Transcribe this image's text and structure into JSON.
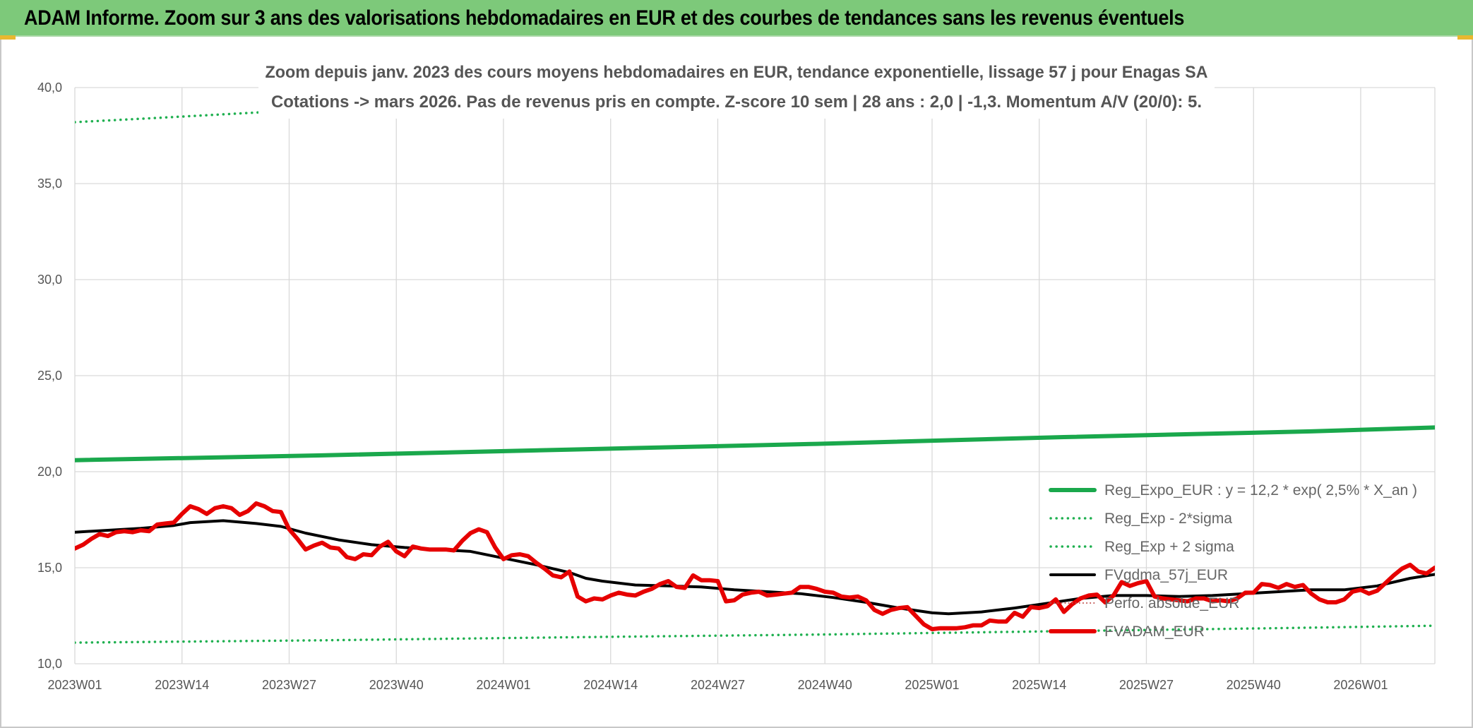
{
  "banner": {
    "title": "ADAM Informe. Zoom sur 3 ans des valorisations hebdomadaires en EUR et des courbes de tendances sans les revenus éventuels"
  },
  "colors": {
    "banner_green": "#7dc97a",
    "trend_green": "#1aa84c",
    "sigma_green": "#1fb050",
    "price_red": "#e60000",
    "moving_average_black": "#000000",
    "perf_dotted": "#c0504d",
    "grid": "#d9d9d9",
    "axis_text": "#555555"
  },
  "chart_data": {
    "type": "line",
    "subtitle_lines": [
      "Zoom depuis janv. 2023 des cours moyens hebdomadaires en EUR, tendance exponentielle, lissage 57 j pour Enagas SA",
      "Cotations -> mars 2026. Pas de revenus pris en compte. Z-score 10 sem | 28 ans : 2,0 | -1,3. Momentum A/V (20/0): 5."
    ],
    "ylim": [
      10,
      40
    ],
    "y_ticks": [
      {
        "value": 10,
        "label": "10,0"
      },
      {
        "value": 15,
        "label": "15,0"
      },
      {
        "value": 20,
        "label": "20,0"
      },
      {
        "value": 25,
        "label": "25,0"
      },
      {
        "value": 30,
        "label": "30,0"
      },
      {
        "value": 35,
        "label": "35,0"
      },
      {
        "value": 40,
        "label": "40,0"
      }
    ],
    "x_range_weeks": [
      0,
      165
    ],
    "x_ticks": [
      {
        "week": 0,
        "label": "2023W01"
      },
      {
        "week": 13,
        "label": "2023W14"
      },
      {
        "week": 26,
        "label": "2023W27"
      },
      {
        "week": 39,
        "label": "2023W40"
      },
      {
        "week": 52,
        "label": "2024W01"
      },
      {
        "week": 65,
        "label": "2024W14"
      },
      {
        "week": 78,
        "label": "2024W27"
      },
      {
        "week": 91,
        "label": "2024W40"
      },
      {
        "week": 104,
        "label": "2025W01"
      },
      {
        "week": 117,
        "label": "2025W14"
      },
      {
        "week": 130,
        "label": "2025W27"
      },
      {
        "week": 143,
        "label": "2025W40"
      },
      {
        "week": 156,
        "label": "2026W01"
      }
    ],
    "grid": true,
    "legend_position": "bottom-right",
    "series": [
      {
        "name": "Reg_Expo_EUR : y = 12,2 * exp( 2,5% *  X_an )",
        "style": "thick-solid",
        "color": "#1aa84c",
        "points": [
          [
            0,
            20.6
          ],
          [
            30,
            20.85
          ],
          [
            60,
            21.15
          ],
          [
            90,
            21.45
          ],
          [
            120,
            21.8
          ],
          [
            150,
            22.1
          ],
          [
            165,
            22.3
          ]
        ]
      },
      {
        "name": "Reg_Exp - 2*sigma",
        "style": "dotted",
        "color": "#1fb050",
        "points": [
          [
            0,
            11.1
          ],
          [
            30,
            11.22
          ],
          [
            60,
            11.38
          ],
          [
            90,
            11.52
          ],
          [
            120,
            11.7
          ],
          [
            150,
            11.88
          ],
          [
            165,
            11.98
          ]
        ]
      },
      {
        "name": "Reg_Exp + 2 sigma",
        "style": "dotted",
        "color": "#1fb050",
        "points": [
          [
            0,
            38.2
          ],
          [
            10,
            38.42
          ],
          [
            22,
            38.7
          ],
          [
            30,
            38.85
          ],
          [
            60,
            39.3
          ],
          [
            90,
            39.7
          ],
          [
            120,
            40.2
          ],
          [
            165,
            40.9
          ]
        ]
      },
      {
        "name": "FVgdma_57j_EUR",
        "style": "solid",
        "color": "#000000",
        "points": [
          [
            0,
            16.85
          ],
          [
            4,
            16.95
          ],
          [
            8,
            17.05
          ],
          [
            12,
            17.2
          ],
          [
            14,
            17.35
          ],
          [
            18,
            17.45
          ],
          [
            22,
            17.3
          ],
          [
            25,
            17.15
          ],
          [
            28,
            16.8
          ],
          [
            32,
            16.45
          ],
          [
            36,
            16.2
          ],
          [
            40,
            16.05
          ],
          [
            44,
            15.95
          ],
          [
            48,
            15.85
          ],
          [
            52,
            15.5
          ],
          [
            56,
            15.15
          ],
          [
            60,
            14.75
          ],
          [
            62,
            14.45
          ],
          [
            64,
            14.3
          ],
          [
            68,
            14.1
          ],
          [
            72,
            14.05
          ],
          [
            76,
            14.0
          ],
          [
            80,
            13.85
          ],
          [
            84,
            13.75
          ],
          [
            88,
            13.65
          ],
          [
            92,
            13.45
          ],
          [
            96,
            13.2
          ],
          [
            100,
            12.9
          ],
          [
            104,
            12.65
          ],
          [
            106,
            12.6
          ],
          [
            110,
            12.7
          ],
          [
            114,
            12.9
          ],
          [
            118,
            13.15
          ],
          [
            122,
            13.4
          ],
          [
            126,
            13.55
          ],
          [
            130,
            13.55
          ],
          [
            134,
            13.5
          ],
          [
            138,
            13.55
          ],
          [
            142,
            13.65
          ],
          [
            146,
            13.75
          ],
          [
            150,
            13.85
          ],
          [
            154,
            13.85
          ],
          [
            158,
            14.05
          ],
          [
            162,
            14.45
          ],
          [
            165,
            14.65
          ]
        ]
      },
      {
        "name": "Perfo. absolue_EUR",
        "style": "dotted-thin",
        "color": "#c0504d",
        "points": []
      },
      {
        "name": "FVADAM_EUR",
        "style": "thick-solid",
        "color": "#e60000",
        "points": [
          [
            0,
            16.0
          ],
          [
            1,
            16.2
          ],
          [
            2,
            16.5
          ],
          [
            3,
            16.75
          ],
          [
            4,
            16.65
          ],
          [
            5,
            16.85
          ],
          [
            6,
            16.9
          ],
          [
            7,
            16.85
          ],
          [
            8,
            16.95
          ],
          [
            9,
            16.9
          ],
          [
            10,
            17.25
          ],
          [
            11,
            17.3
          ],
          [
            12,
            17.35
          ],
          [
            13,
            17.8
          ],
          [
            14,
            18.2
          ],
          [
            15,
            18.05
          ],
          [
            16,
            17.8
          ],
          [
            17,
            18.1
          ],
          [
            18,
            18.2
          ],
          [
            19,
            18.1
          ],
          [
            20,
            17.75
          ],
          [
            21,
            17.95
          ],
          [
            22,
            18.35
          ],
          [
            23,
            18.2
          ],
          [
            24,
            17.95
          ],
          [
            25,
            17.9
          ],
          [
            26,
            17.0
          ],
          [
            27,
            16.5
          ],
          [
            28,
            15.95
          ],
          [
            29,
            16.15
          ],
          [
            30,
            16.3
          ],
          [
            31,
            16.05
          ],
          [
            32,
            16.0
          ],
          [
            33,
            15.55
          ],
          [
            34,
            15.45
          ],
          [
            35,
            15.7
          ],
          [
            36,
            15.65
          ],
          [
            37,
            16.1
          ],
          [
            38,
            16.35
          ],
          [
            39,
            15.85
          ],
          [
            40,
            15.6
          ],
          [
            41,
            16.1
          ],
          [
            42,
            16.0
          ],
          [
            43,
            15.95
          ],
          [
            44,
            15.95
          ],
          [
            45,
            15.95
          ],
          [
            46,
            15.9
          ],
          [
            47,
            16.4
          ],
          [
            48,
            16.8
          ],
          [
            49,
            17.0
          ],
          [
            50,
            16.85
          ],
          [
            51,
            16.05
          ],
          [
            52,
            15.45
          ],
          [
            53,
            15.65
          ],
          [
            54,
            15.7
          ],
          [
            55,
            15.6
          ],
          [
            56,
            15.25
          ],
          [
            57,
            14.95
          ],
          [
            58,
            14.6
          ],
          [
            59,
            14.5
          ],
          [
            60,
            14.8
          ],
          [
            61,
            13.5
          ],
          [
            62,
            13.25
          ],
          [
            63,
            13.4
          ],
          [
            64,
            13.35
          ],
          [
            65,
            13.55
          ],
          [
            66,
            13.7
          ],
          [
            67,
            13.6
          ],
          [
            68,
            13.55
          ],
          [
            69,
            13.75
          ],
          [
            70,
            13.9
          ],
          [
            71,
            14.15
          ],
          [
            72,
            14.3
          ],
          [
            73,
            14.0
          ],
          [
            74,
            13.95
          ],
          [
            75,
            14.6
          ],
          [
            76,
            14.35
          ],
          [
            77,
            14.35
          ],
          [
            78,
            14.3
          ],
          [
            79,
            13.25
          ],
          [
            80,
            13.3
          ],
          [
            81,
            13.6
          ],
          [
            82,
            13.7
          ],
          [
            83,
            13.75
          ],
          [
            84,
            13.55
          ],
          [
            85,
            13.6
          ],
          [
            86,
            13.65
          ],
          [
            87,
            13.7
          ],
          [
            88,
            14.0
          ],
          [
            89,
            14.0
          ],
          [
            90,
            13.9
          ],
          [
            91,
            13.75
          ],
          [
            92,
            13.7
          ],
          [
            93,
            13.5
          ],
          [
            94,
            13.45
          ],
          [
            95,
            13.5
          ],
          [
            96,
            13.3
          ],
          [
            97,
            12.8
          ],
          [
            98,
            12.6
          ],
          [
            99,
            12.8
          ],
          [
            100,
            12.9
          ],
          [
            101,
            12.95
          ],
          [
            102,
            12.5
          ],
          [
            103,
            12.05
          ],
          [
            104,
            11.8
          ],
          [
            105,
            11.85
          ],
          [
            106,
            11.85
          ],
          [
            107,
            11.85
          ],
          [
            108,
            11.9
          ],
          [
            109,
            12.0
          ],
          [
            110,
            12.0
          ],
          [
            111,
            12.25
          ],
          [
            112,
            12.2
          ],
          [
            113,
            12.2
          ],
          [
            114,
            12.65
          ],
          [
            115,
            12.45
          ],
          [
            116,
            12.95
          ],
          [
            117,
            12.9
          ],
          [
            118,
            13.0
          ],
          [
            119,
            13.35
          ],
          [
            120,
            12.7
          ],
          [
            121,
            13.1
          ],
          [
            122,
            13.4
          ],
          [
            123,
            13.55
          ],
          [
            124,
            13.6
          ],
          [
            125,
            13.2
          ],
          [
            126,
            13.55
          ],
          [
            127,
            14.25
          ],
          [
            128,
            14.05
          ],
          [
            129,
            14.2
          ],
          [
            130,
            14.3
          ],
          [
            131,
            13.5
          ],
          [
            132,
            13.4
          ],
          [
            133,
            13.35
          ],
          [
            134,
            13.3
          ],
          [
            135,
            13.25
          ],
          [
            136,
            13.4
          ],
          [
            137,
            13.4
          ],
          [
            138,
            13.25
          ],
          [
            139,
            13.3
          ],
          [
            140,
            13.25
          ],
          [
            141,
            13.4
          ],
          [
            142,
            13.7
          ],
          [
            143,
            13.7
          ],
          [
            144,
            14.15
          ],
          [
            145,
            14.1
          ],
          [
            146,
            13.95
          ],
          [
            147,
            14.15
          ],
          [
            148,
            14.0
          ],
          [
            149,
            14.1
          ],
          [
            150,
            13.65
          ],
          [
            151,
            13.35
          ],
          [
            152,
            13.2
          ],
          [
            153,
            13.2
          ],
          [
            154,
            13.35
          ],
          [
            155,
            13.75
          ],
          [
            156,
            13.85
          ],
          [
            157,
            13.65
          ],
          [
            158,
            13.8
          ],
          [
            159,
            14.2
          ],
          [
            160,
            14.6
          ],
          [
            161,
            14.95
          ],
          [
            162,
            15.15
          ],
          [
            163,
            14.8
          ],
          [
            164,
            14.7
          ],
          [
            165,
            15.0
          ]
        ]
      }
    ]
  }
}
